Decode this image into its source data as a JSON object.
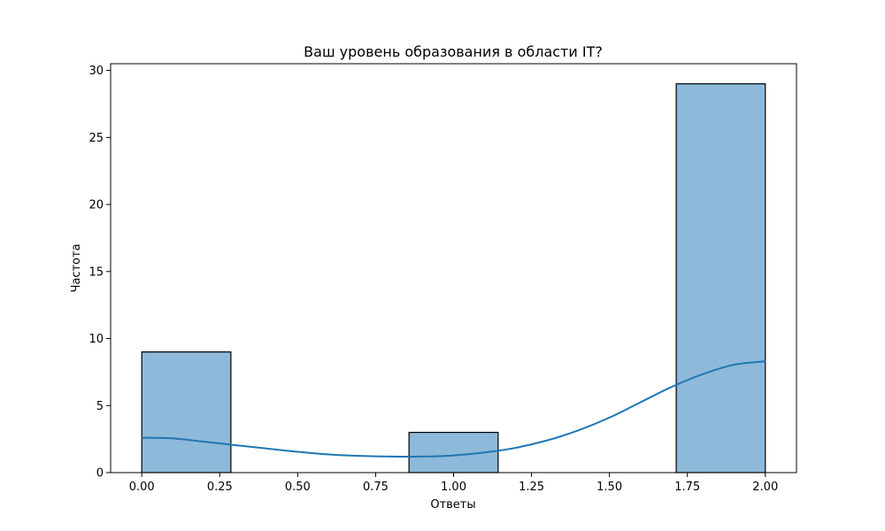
{
  "chart_data": {
    "type": "bar",
    "title": "Ваш уровень образования в области IT?",
    "xlabel": "Ответы",
    "ylabel": "Частота",
    "xlim": [
      -0.1,
      2.1
    ],
    "ylim": [
      0,
      30.5
    ],
    "x_ticks": [
      0.0,
      0.25,
      0.5,
      0.75,
      1.0,
      1.25,
      1.5,
      1.75,
      2.0
    ],
    "x_tick_labels": [
      "0.00",
      "0.25",
      "0.50",
      "0.75",
      "1.00",
      "1.25",
      "1.50",
      "1.75",
      "2.00"
    ],
    "y_ticks": [
      0,
      5,
      10,
      15,
      20,
      25,
      30
    ],
    "y_tick_labels": [
      "0",
      "5",
      "10",
      "15",
      "20",
      "25",
      "30"
    ],
    "bins": [
      {
        "x0": 0.0,
        "x1": 0.2857,
        "count": 9
      },
      {
        "x0": 0.2857,
        "x1": 0.5714,
        "count": 0
      },
      {
        "x0": 0.5714,
        "x1": 0.8571,
        "count": 0
      },
      {
        "x0": 0.8571,
        "x1": 1.1429,
        "count": 3
      },
      {
        "x0": 1.1429,
        "x1": 1.4286,
        "count": 0
      },
      {
        "x0": 1.4286,
        "x1": 1.7143,
        "count": 0
      },
      {
        "x0": 1.7143,
        "x1": 2.0,
        "count": 29
      }
    ],
    "kde": {
      "x": [
        0.0,
        0.1,
        0.2,
        0.3,
        0.4,
        0.5,
        0.6,
        0.7,
        0.8,
        0.9,
        1.0,
        1.1,
        1.2,
        1.3,
        1.4,
        1.5,
        1.6,
        1.7,
        1.8,
        1.9,
        2.0
      ],
      "y": [
        2.6,
        2.55,
        2.3,
        2.05,
        1.8,
        1.55,
        1.35,
        1.25,
        1.2,
        1.2,
        1.28,
        1.5,
        1.85,
        2.4,
        3.15,
        4.1,
        5.25,
        6.4,
        7.35,
        8.05,
        8.3
      ]
    },
    "colors": {
      "bar_fill": "#8eb9da",
      "bar_edge": "#000000",
      "kde_line": "#1f77b4"
    },
    "grid": false,
    "legend": "none"
  }
}
